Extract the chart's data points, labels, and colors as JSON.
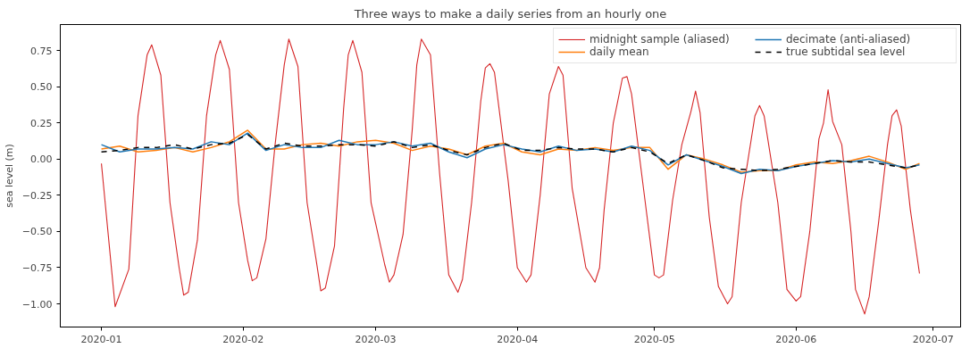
{
  "chart_data": {
    "type": "line",
    "title": "Three ways to make a daily series from an hourly one",
    "ylabel": "sea level (m)",
    "xlim": [
      "2019-12-23",
      "2020-07-07"
    ],
    "ylim": [
      -1.16,
      0.93
    ],
    "xticks": [
      "2020-01",
      "2020-02",
      "2020-03",
      "2020-04",
      "2020-05",
      "2020-06",
      "2020-07"
    ],
    "yticks": [
      {
        "value": -1.0,
        "label": "−1.00"
      },
      {
        "value": -0.75,
        "label": "−0.75"
      },
      {
        "value": -0.5,
        "label": "−0.50"
      },
      {
        "value": -0.25,
        "label": "−0.25"
      },
      {
        "value": 0,
        "label": "0.00"
      },
      {
        "value": 0.25,
        "label": "0.25"
      },
      {
        "value": 0.5,
        "label": "0.50"
      },
      {
        "value": 0.75,
        "label": "0.75"
      }
    ],
    "grid": false,
    "legend": "top right",
    "marker": "none",
    "series": [
      {
        "name": "midnight sample (aliased)",
        "color": "#d62728",
        "line_style": "solid",
        "x": [
          "2020-01-01",
          "2020-01-04",
          "2020-01-07",
          "2020-01-09",
          "2020-01-11",
          "2020-01-12",
          "2020-01-14",
          "2020-01-16",
          "2020-01-18",
          "2020-01-19",
          "2020-01-20",
          "2020-01-22",
          "2020-01-24",
          "2020-01-26",
          "2020-01-27",
          "2020-01-29",
          "2020-01-31",
          "2020-02-02",
          "2020-02-03",
          "2020-02-04",
          "2020-02-06",
          "2020-02-08",
          "2020-02-10",
          "2020-02-11",
          "2020-02-13",
          "2020-02-15",
          "2020-02-17",
          "2020-02-18",
          "2020-02-19",
          "2020-02-21",
          "2020-02-23",
          "2020-02-24",
          "2020-02-25",
          "2020-02-27",
          "2020-02-29",
          "2020-03-03",
          "2020-03-04",
          "2020-03-05",
          "2020-03-07",
          "2020-03-09",
          "2020-03-10",
          "2020-03-11",
          "2020-03-13",
          "2020-03-15",
          "2020-03-17",
          "2020-03-19",
          "2020-03-20",
          "2020-03-22",
          "2020-03-24",
          "2020-03-25",
          "2020-03-26",
          "2020-03-27",
          "2020-03-30",
          "2020-04-01",
          "2020-04-03",
          "2020-04-04",
          "2020-04-06",
          "2020-04-08",
          "2020-04-10",
          "2020-04-11",
          "2020-04-13",
          "2020-04-16",
          "2020-04-18",
          "2020-04-19",
          "2020-04-20",
          "2020-04-22",
          "2020-04-24",
          "2020-04-25",
          "2020-04-26",
          "2020-04-29",
          "2020-05-01",
          "2020-05-02",
          "2020-05-03",
          "2020-05-05",
          "2020-05-07",
          "2020-05-09",
          "2020-05-10",
          "2020-05-11",
          "2020-05-13",
          "2020-05-15",
          "2020-05-17",
          "2020-05-18",
          "2020-05-20",
          "2020-05-23",
          "2020-05-24",
          "2020-05-25",
          "2020-05-28",
          "2020-05-30",
          "2020-06-01",
          "2020-06-02",
          "2020-06-04",
          "2020-06-06",
          "2020-06-07",
          "2020-06-08",
          "2020-06-09",
          "2020-06-11",
          "2020-06-13",
          "2020-06-14",
          "2020-06-16",
          "2020-06-17",
          "2020-06-19",
          "2020-06-21",
          "2020-06-22",
          "2020-06-23",
          "2020-06-24",
          "2020-06-26",
          "2020-06-28"
        ],
        "values": [
          -0.03,
          -1.02,
          -0.76,
          0.3,
          0.72,
          0.79,
          0.58,
          -0.3,
          -0.75,
          -0.94,
          -0.92,
          -0.56,
          0.3,
          0.72,
          0.82,
          0.62,
          -0.3,
          -0.7,
          -0.84,
          -0.82,
          -0.55,
          0.1,
          0.65,
          0.83,
          0.64,
          -0.3,
          -0.7,
          -0.91,
          -0.89,
          -0.6,
          0.35,
          0.72,
          0.82,
          0.6,
          -0.3,
          -0.73,
          -0.85,
          -0.8,
          -0.52,
          0.2,
          0.65,
          0.83,
          0.72,
          -0.1,
          -0.8,
          -0.92,
          -0.83,
          -0.3,
          0.4,
          0.63,
          0.66,
          0.6,
          -0.15,
          -0.75,
          -0.85,
          -0.8,
          -0.25,
          0.45,
          0.64,
          0.58,
          -0.2,
          -0.75,
          -0.85,
          -0.75,
          -0.35,
          0.25,
          0.56,
          0.57,
          0.45,
          -0.3,
          -0.8,
          -0.82,
          -0.8,
          -0.28,
          0.1,
          0.33,
          0.47,
          0.32,
          -0.4,
          -0.88,
          -1.0,
          -0.95,
          -0.3,
          0.3,
          0.37,
          0.3,
          -0.3,
          -0.9,
          -0.98,
          -0.95,
          -0.5,
          0.14,
          0.25,
          0.48,
          0.26,
          0.1,
          -0.5,
          -0.9,
          -1.07,
          -0.95,
          -0.45,
          0.1,
          0.3,
          0.34,
          0.23,
          -0.35,
          -0.79
        ]
      },
      {
        "name": "daily mean",
        "color": "#ff7f0e",
        "line_style": "solid",
        "x": [
          "2020-01-01",
          "2020-01-05",
          "2020-01-09",
          "2020-01-13",
          "2020-01-17",
          "2020-01-21",
          "2020-01-25",
          "2020-01-29",
          "2020-02-02",
          "2020-02-06",
          "2020-02-10",
          "2020-02-14",
          "2020-02-18",
          "2020-02-22",
          "2020-02-26",
          "2020-03-01",
          "2020-03-05",
          "2020-03-09",
          "2020-03-13",
          "2020-03-17",
          "2020-03-21",
          "2020-03-25",
          "2020-03-29",
          "2020-04-02",
          "2020-04-06",
          "2020-04-10",
          "2020-04-14",
          "2020-04-18",
          "2020-04-22",
          "2020-04-26",
          "2020-04-30",
          "2020-05-04",
          "2020-05-08",
          "2020-05-12",
          "2020-05-16",
          "2020-05-20",
          "2020-05-24",
          "2020-05-28",
          "2020-06-01",
          "2020-06-05",
          "2020-06-09",
          "2020-06-13",
          "2020-06-17",
          "2020-06-21",
          "2020-06-25",
          "2020-06-28"
        ],
        "values": [
          0.07,
          0.09,
          0.05,
          0.06,
          0.08,
          0.05,
          0.08,
          0.12,
          0.2,
          0.07,
          0.07,
          0.1,
          0.11,
          0.09,
          0.12,
          0.13,
          0.11,
          0.06,
          0.09,
          0.07,
          0.03,
          0.09,
          0.11,
          0.05,
          0.03,
          0.07,
          0.06,
          0.08,
          0.06,
          0.08,
          0.08,
          -0.07,
          0.03,
          0.0,
          -0.04,
          -0.09,
          -0.08,
          -0.08,
          -0.04,
          -0.02,
          -0.03,
          -0.01,
          0.02,
          -0.02,
          -0.07,
          -0.03
        ]
      },
      {
        "name": "decimate (anti-aliased)",
        "color": "#1f77b4",
        "line_style": "solid",
        "x": [
          "2020-01-01",
          "2020-01-05",
          "2020-01-09",
          "2020-01-13",
          "2020-01-17",
          "2020-01-21",
          "2020-01-25",
          "2020-01-29",
          "2020-02-02",
          "2020-02-06",
          "2020-02-10",
          "2020-02-14",
          "2020-02-18",
          "2020-02-22",
          "2020-02-26",
          "2020-03-01",
          "2020-03-05",
          "2020-03-09",
          "2020-03-13",
          "2020-03-17",
          "2020-03-21",
          "2020-03-25",
          "2020-03-29",
          "2020-04-02",
          "2020-04-06",
          "2020-04-10",
          "2020-04-14",
          "2020-04-18",
          "2020-04-22",
          "2020-04-26",
          "2020-04-30",
          "2020-05-04",
          "2020-05-08",
          "2020-05-12",
          "2020-05-16",
          "2020-05-20",
          "2020-05-24",
          "2020-05-28",
          "2020-06-01",
          "2020-06-05",
          "2020-06-09",
          "2020-06-13",
          "2020-06-17",
          "2020-06-21",
          "2020-06-25",
          "2020-06-28"
        ],
        "values": [
          0.1,
          0.05,
          0.07,
          0.07,
          0.08,
          0.07,
          0.12,
          0.1,
          0.18,
          0.06,
          0.1,
          0.08,
          0.08,
          0.13,
          0.1,
          0.1,
          0.12,
          0.09,
          0.11,
          0.05,
          0.01,
          0.07,
          0.1,
          0.07,
          0.05,
          0.09,
          0.06,
          0.07,
          0.05,
          0.09,
          0.06,
          -0.04,
          0.03,
          -0.01,
          -0.05,
          -0.1,
          -0.07,
          -0.08,
          -0.05,
          -0.03,
          -0.01,
          -0.02,
          0.0,
          -0.03,
          -0.06,
          -0.04
        ]
      },
      {
        "name": "true subtidal sea level",
        "color": "#000000",
        "line_style": "dashed",
        "x": [
          "2020-01-01",
          "2020-01-05",
          "2020-01-09",
          "2020-01-13",
          "2020-01-17",
          "2020-01-21",
          "2020-01-25",
          "2020-01-29",
          "2020-02-02",
          "2020-02-06",
          "2020-02-10",
          "2020-02-14",
          "2020-02-18",
          "2020-02-22",
          "2020-02-26",
          "2020-03-01",
          "2020-03-05",
          "2020-03-09",
          "2020-03-13",
          "2020-03-17",
          "2020-03-21",
          "2020-03-25",
          "2020-03-29",
          "2020-04-02",
          "2020-04-06",
          "2020-04-10",
          "2020-04-14",
          "2020-04-18",
          "2020-04-22",
          "2020-04-26",
          "2020-04-30",
          "2020-05-04",
          "2020-05-08",
          "2020-05-12",
          "2020-05-16",
          "2020-05-20",
          "2020-05-24",
          "2020-05-28",
          "2020-06-01",
          "2020-06-05",
          "2020-06-09",
          "2020-06-13",
          "2020-06-17",
          "2020-06-21",
          "2020-06-25",
          "2020-06-28"
        ],
        "values": [
          0.05,
          0.06,
          0.08,
          0.08,
          0.1,
          0.07,
          0.1,
          0.11,
          0.17,
          0.07,
          0.11,
          0.09,
          0.09,
          0.1,
          0.1,
          0.09,
          0.12,
          0.08,
          0.1,
          0.06,
          0.03,
          0.08,
          0.11,
          0.06,
          0.06,
          0.08,
          0.07,
          0.07,
          0.05,
          0.08,
          0.05,
          -0.03,
          0.03,
          -0.01,
          -0.06,
          -0.07,
          -0.08,
          -0.07,
          -0.05,
          -0.03,
          -0.01,
          -0.02,
          -0.02,
          -0.04,
          -0.06,
          -0.04
        ]
      }
    ]
  }
}
